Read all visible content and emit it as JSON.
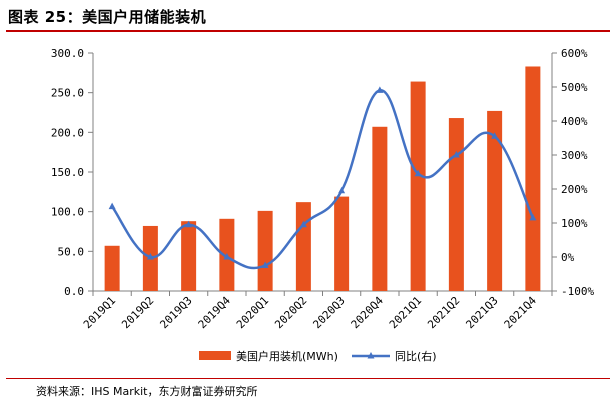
{
  "figure": {
    "title": "图表 25：美国户用储能装机",
    "source": "资料来源：IHS Markit，东方财富证券研究所"
  },
  "colors": {
    "bar": "#e8521e",
    "line": "#4472c4",
    "rule": "#c00000"
  },
  "chart_data": {
    "type": "bar",
    "categories": [
      "2019Q1",
      "2019Q2",
      "2019Q3",
      "2019Q4",
      "2020Q1",
      "2020Q2",
      "2020Q3",
      "2020Q4",
      "2021Q1",
      "2021Q2",
      "2021Q3",
      "2021Q4"
    ],
    "series": [
      {
        "name": "美国户用装机(MWh)",
        "type": "bar",
        "axis": "left",
        "values": [
          57,
          82,
          88,
          91,
          101,
          112,
          119,
          207,
          264,
          218,
          227,
          283
        ]
      },
      {
        "name": "同比(右)",
        "type": "line",
        "axis": "right",
        "values": [
          148,
          0,
          95,
          0,
          -25,
          95,
          195,
          490,
          245,
          300,
          355,
          115
        ]
      }
    ],
    "left_axis": {
      "ylim": [
        0,
        300
      ],
      "ticks": [
        0,
        50,
        100,
        150,
        200,
        250,
        300
      ],
      "tick_labels": [
        "0.0",
        "50.0",
        "100.0",
        "150.0",
        "200.0",
        "250.0",
        "300.0"
      ]
    },
    "right_axis": {
      "ylim": [
        -100,
        600
      ],
      "ticks": [
        -100,
        0,
        100,
        200,
        300,
        400,
        500,
        600
      ],
      "tick_labels": [
        "-100%",
        "0%",
        "100%",
        "200%",
        "300%",
        "400%",
        "500%",
        "600%"
      ]
    },
    "xlabel": "",
    "ylabel": "",
    "grid": false,
    "legend": [
      "美国户用装机(MWh)",
      "同比(右)"
    ],
    "legend_position": "bottom"
  }
}
